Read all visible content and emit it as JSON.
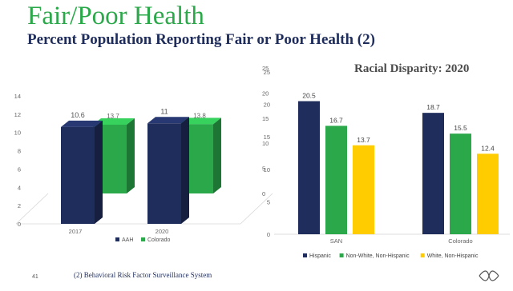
{
  "slide": {
    "title": "Fair/Poor Health",
    "subtitle": "Percent Population Reporting Fair or Poor Health (2)",
    "footnote": "(2) Behavioral Risk Factor Surveillance System",
    "slide_number": "41",
    "logo_icon": "ribbon-knot-icon"
  },
  "chart_data": [
    {
      "type": "bar",
      "projection": "3d-column",
      "categories": [
        "2017",
        "2020"
      ],
      "series": [
        {
          "name": "AAH",
          "values": [
            10.6,
            11
          ],
          "color": "#1f2d5c",
          "axis": "left"
        },
        {
          "name": "Colorado",
          "values": [
            13.7,
            13.8
          ],
          "color": "#2ba84a",
          "axis": "right"
        }
      ],
      "left_axis": {
        "ticks": [
          0,
          2,
          4,
          6,
          8,
          10,
          12,
          14
        ],
        "ylim": [
          0,
          14
        ]
      },
      "right_axis": {
        "ticks": [
          0,
          5,
          10,
          15,
          20,
          25
        ],
        "ylim": [
          0,
          25
        ]
      },
      "legend": "bottom",
      "grid": false
    },
    {
      "type": "bar",
      "title": "Racial Disparity: 2020",
      "categories": [
        "SAN",
        "Colorado"
      ],
      "series": [
        {
          "name": "Hispanic",
          "values": [
            20.5,
            18.7
          ],
          "color": "#1f2d5c"
        },
        {
          "name": "Non-White, Non-Hispanic",
          "values": [
            16.7,
            15.5
          ],
          "color": "#2ba84a"
        },
        {
          "name": "White, Non-Hispanic",
          "values": [
            13.7,
            12.4
          ],
          "color": "#ffcc00"
        }
      ],
      "y_ticks": [
        0,
        5,
        10,
        15,
        20,
        25
      ],
      "ylim": [
        0,
        25
      ],
      "legend": "bottom",
      "grid": false
    }
  ]
}
